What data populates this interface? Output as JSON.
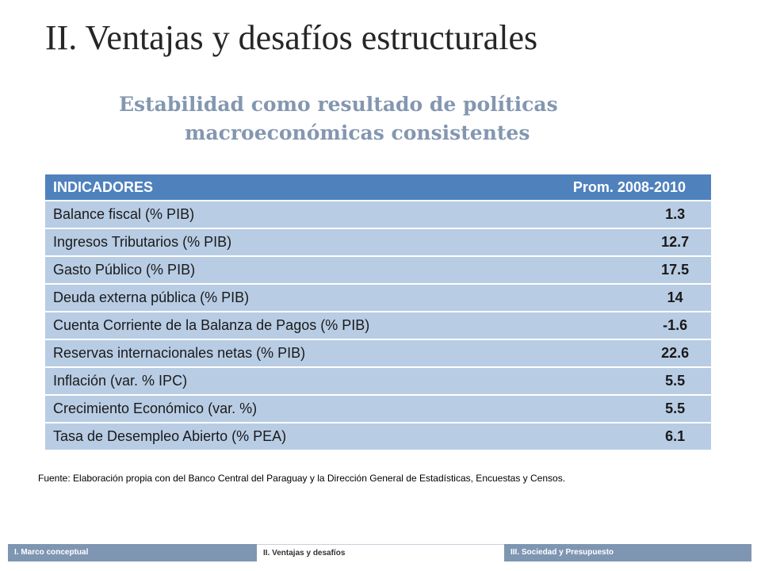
{
  "slide": {
    "title": "II. Ventajas y desafíos estructurales",
    "subtitle_line1": "Estabilidad como resultado de políticas",
    "subtitle_line2": "macroeconómicas consistentes"
  },
  "table": {
    "header_indicator": "INDICADORES",
    "header_value": "Prom. 2008-2010",
    "rows": [
      {
        "indicator": "Balance fiscal (% PIB)",
        "value": "1.3"
      },
      {
        "indicator": "Ingresos Tributarios (% PIB)",
        "value": "12.7"
      },
      {
        "indicator": "Gasto Público (% PIB)",
        "value": "17.5"
      },
      {
        "indicator": "Deuda externa pública (% PIB)",
        "value": "14"
      },
      {
        "indicator": "Cuenta Corriente de la Balanza de Pagos (% PIB)",
        "value": "-1.6"
      },
      {
        "indicator": "Reservas internacionales netas (% PIB)",
        "value": "22.6"
      },
      {
        "indicator": "Inflación (var. % IPC)",
        "value": "5.5"
      },
      {
        "indicator": "Crecimiento Económico (var. %)",
        "value": "5.5"
      },
      {
        "indicator": "Tasa de Desempleo Abierto (% PEA)",
        "value": "6.1"
      }
    ]
  },
  "source_note": "Fuente: Elaboración propia con del Banco Central del Paraguay y la Dirección General de Estadísticas, Encuestas y Censos.",
  "footer_nav": {
    "tab1": "I. Marco conceptual",
    "tab2": "II. Ventajas y desafíos",
    "tab3": "III. Sociedad y Presupuesto"
  },
  "colors": {
    "header_bg": "#4f81bd",
    "row_bg": "#b8cce4",
    "subtitle": "#8497b0",
    "nav_bg": "#7f96b2"
  }
}
